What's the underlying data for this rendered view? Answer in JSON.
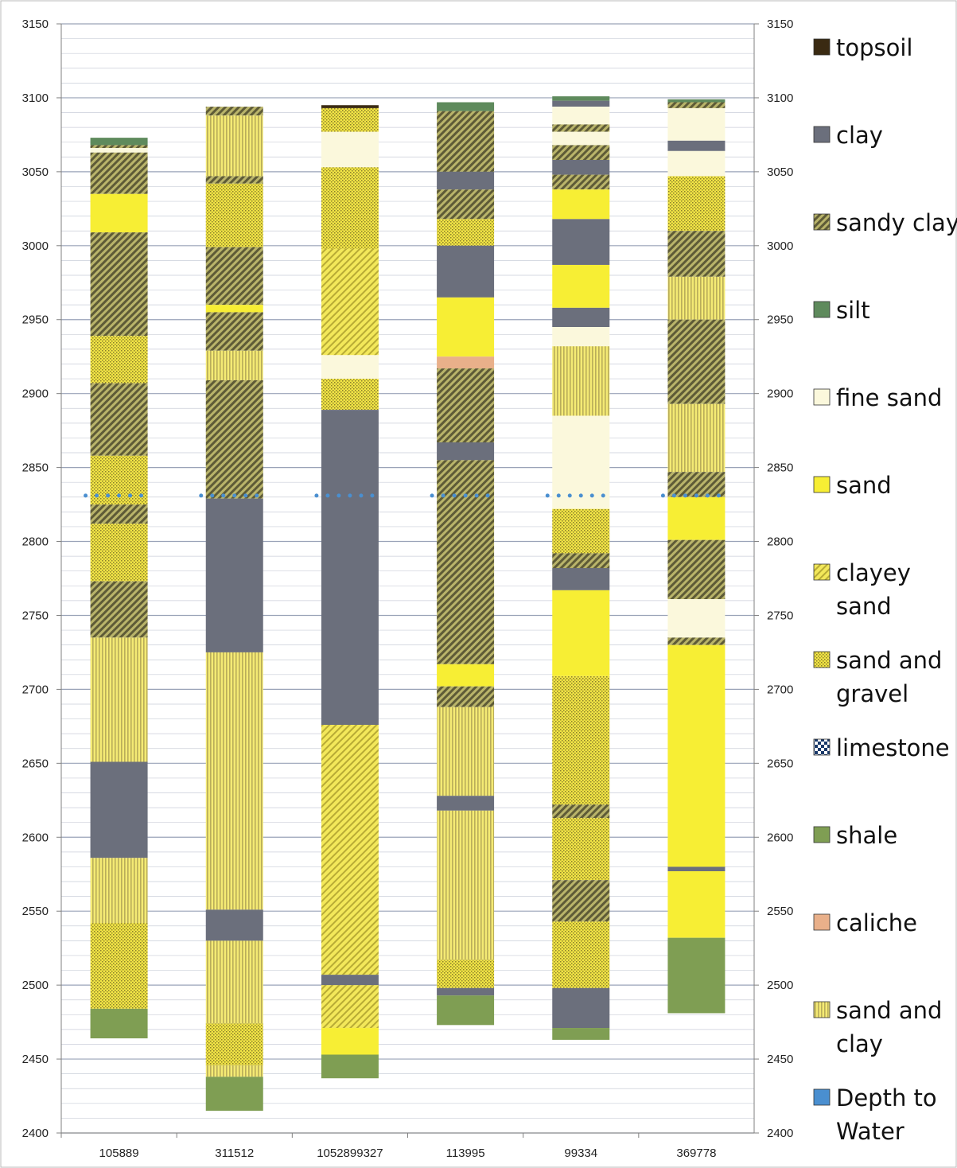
{
  "chart_data": {
    "type": "bar",
    "subtype": "stacked-column-lithology",
    "ylim": [
      2400,
      3150
    ],
    "yticks": [
      2400,
      2450,
      2500,
      2550,
      2600,
      2650,
      2700,
      2750,
      2800,
      2850,
      2900,
      2950,
      3000,
      3050,
      3100,
      3150
    ],
    "secondary_y_axis": true,
    "grid": "horizontal",
    "legend_position": "right",
    "categories": [
      "105889",
      "311512",
      "1052899327",
      "113995",
      "99334",
      "369778"
    ],
    "legend": [
      {
        "key": "topsoil",
        "lines": [
          "topsoil"
        ]
      },
      {
        "key": "clay",
        "lines": [
          "clay"
        ]
      },
      {
        "key": "sandy_clay",
        "lines": [
          "sandy clay"
        ]
      },
      {
        "key": "silt",
        "lines": [
          "silt"
        ]
      },
      {
        "key": "fine_sand",
        "lines": [
          "fine sand"
        ]
      },
      {
        "key": "sand",
        "lines": [
          "sand"
        ]
      },
      {
        "key": "clayey_sand",
        "lines": [
          "clayey",
          "sand"
        ]
      },
      {
        "key": "sand_gravel",
        "lines": [
          "sand and",
          "gravel"
        ]
      },
      {
        "key": "limestone",
        "lines": [
          "limestone"
        ]
      },
      {
        "key": "shale",
        "lines": [
          "shale"
        ]
      },
      {
        "key": "caliche",
        "lines": [
          "caliche"
        ]
      },
      {
        "key": "sand_clay",
        "lines": [
          "sand and",
          "clay"
        ]
      },
      {
        "key": "depth_to_water",
        "lines": [
          "Depth to",
          "Water"
        ]
      }
    ],
    "colors": {
      "topsoil": "#3a2a12",
      "clay": "#6b6f7c",
      "sandy_clay": "#8f8c52",
      "silt": "#5e8a5c",
      "fine_sand": "#fbf8dc",
      "sand": "#f7ee34",
      "clayey_sand": "#e2d44a",
      "sand_gravel": "#e8da45",
      "limestone": "#1a3a6a",
      "shale": "#7f9e53",
      "caliche": "#e9b08a",
      "sand_clay": "#ece275",
      "depth_to_water": "#4a8fd0"
    },
    "depth_to_water": [
      {
        "category": "105889",
        "elevation": 2831
      },
      {
        "category": "311512",
        "elevation": 2831
      },
      {
        "category": "1052899327",
        "elevation": 2831
      },
      {
        "category": "113995",
        "elevation": 2831
      },
      {
        "category": "99334",
        "elevation": 2831
      },
      {
        "category": "369778",
        "elevation": 2831
      }
    ],
    "wells": [
      {
        "name": "105889",
        "intervals": [
          {
            "lith": "silt",
            "top": 3073,
            "bottom": 3068
          },
          {
            "lith": "sandy_clay",
            "top": 3068,
            "bottom": 3066
          },
          {
            "lith": "fine_sand",
            "top": 3066,
            "bottom": 3063
          },
          {
            "lith": "sandy_clay",
            "top": 3063,
            "bottom": 3035
          },
          {
            "lith": "sand",
            "top": 3035,
            "bottom": 3009
          },
          {
            "lith": "sandy_clay",
            "top": 3009,
            "bottom": 2939
          },
          {
            "lith": "sand_gravel",
            "top": 2939,
            "bottom": 2907
          },
          {
            "lith": "sandy_clay",
            "top": 2907,
            "bottom": 2858
          },
          {
            "lith": "sand_gravel",
            "top": 2858,
            "bottom": 2825
          },
          {
            "lith": "sandy_clay",
            "top": 2825,
            "bottom": 2812
          },
          {
            "lith": "sand_gravel",
            "top": 2812,
            "bottom": 2773
          },
          {
            "lith": "sandy_clay",
            "top": 2773,
            "bottom": 2735
          },
          {
            "lith": "sand_clay",
            "top": 2735,
            "bottom": 2651
          },
          {
            "lith": "clay",
            "top": 2651,
            "bottom": 2586
          },
          {
            "lith": "sand_clay",
            "top": 2586,
            "bottom": 2542
          },
          {
            "lith": "sand_gravel",
            "top": 2542,
            "bottom": 2484
          },
          {
            "lith": "shale",
            "top": 2484,
            "bottom": 2464
          }
        ]
      },
      {
        "name": "311512",
        "intervals": [
          {
            "lith": "sandy_clay",
            "top": 3094,
            "bottom": 3088
          },
          {
            "lith": "sand_clay",
            "top": 3088,
            "bottom": 3047
          },
          {
            "lith": "sandy_clay",
            "top": 3047,
            "bottom": 3042
          },
          {
            "lith": "sand_gravel",
            "top": 3042,
            "bottom": 2999
          },
          {
            "lith": "sandy_clay",
            "top": 2999,
            "bottom": 2960
          },
          {
            "lith": "sand",
            "top": 2960,
            "bottom": 2955
          },
          {
            "lith": "sandy_clay",
            "top": 2955,
            "bottom": 2929
          },
          {
            "lith": "sand_clay",
            "top": 2929,
            "bottom": 2909
          },
          {
            "lith": "sandy_clay",
            "top": 2909,
            "bottom": 2829
          },
          {
            "lith": "clay",
            "top": 2829,
            "bottom": 2725
          },
          {
            "lith": "sand_clay",
            "top": 2725,
            "bottom": 2551
          },
          {
            "lith": "clay",
            "top": 2551,
            "bottom": 2530
          },
          {
            "lith": "sand_clay",
            "top": 2530,
            "bottom": 2474
          },
          {
            "lith": "sand_gravel",
            "top": 2474,
            "bottom": 2446
          },
          {
            "lith": "sand_clay",
            "top": 2446,
            "bottom": 2438
          },
          {
            "lith": "shale",
            "top": 2438,
            "bottom": 2415
          }
        ]
      },
      {
        "name": "1052899327",
        "intervals": [
          {
            "lith": "topsoil",
            "top": 3095,
            "bottom": 3093
          },
          {
            "lith": "sand_gravel",
            "top": 3093,
            "bottom": 3077
          },
          {
            "lith": "fine_sand",
            "top": 3077,
            "bottom": 3053
          },
          {
            "lith": "sand_gravel",
            "top": 3053,
            "bottom": 2998
          },
          {
            "lith": "clayey_sand",
            "top": 2998,
            "bottom": 2926
          },
          {
            "lith": "fine_sand",
            "top": 2926,
            "bottom": 2910
          },
          {
            "lith": "sand_gravel",
            "top": 2910,
            "bottom": 2889
          },
          {
            "lith": "clay",
            "top": 2889,
            "bottom": 2676
          },
          {
            "lith": "clayey_sand",
            "top": 2676,
            "bottom": 2507
          },
          {
            "lith": "clay",
            "top": 2507,
            "bottom": 2500
          },
          {
            "lith": "clayey_sand",
            "top": 2500,
            "bottom": 2471
          },
          {
            "lith": "sand",
            "top": 2471,
            "bottom": 2453
          },
          {
            "lith": "shale",
            "top": 2453,
            "bottom": 2437
          }
        ]
      },
      {
        "name": "113995",
        "intervals": [
          {
            "lith": "silt",
            "top": 3097,
            "bottom": 3091
          },
          {
            "lith": "sandy_clay",
            "top": 3091,
            "bottom": 3050
          },
          {
            "lith": "clay",
            "top": 3050,
            "bottom": 3038
          },
          {
            "lith": "sandy_clay",
            "top": 3038,
            "bottom": 3018
          },
          {
            "lith": "sand_gravel",
            "top": 3018,
            "bottom": 3000
          },
          {
            "lith": "clay",
            "top": 3000,
            "bottom": 2965
          },
          {
            "lith": "sand",
            "top": 2965,
            "bottom": 2925
          },
          {
            "lith": "caliche",
            "top": 2925,
            "bottom": 2917
          },
          {
            "lith": "sandy_clay",
            "top": 2917,
            "bottom": 2867
          },
          {
            "lith": "clay",
            "top": 2867,
            "bottom": 2855
          },
          {
            "lith": "sandy_clay",
            "top": 2855,
            "bottom": 2717
          },
          {
            "lith": "sand",
            "top": 2717,
            "bottom": 2702
          },
          {
            "lith": "sandy_clay",
            "top": 2702,
            "bottom": 2688
          },
          {
            "lith": "sand_clay",
            "top": 2688,
            "bottom": 2628
          },
          {
            "lith": "clay",
            "top": 2628,
            "bottom": 2618
          },
          {
            "lith": "sand_clay",
            "top": 2618,
            "bottom": 2517
          },
          {
            "lith": "sand_gravel",
            "top": 2517,
            "bottom": 2498
          },
          {
            "lith": "clay",
            "top": 2498,
            "bottom": 2493
          },
          {
            "lith": "shale",
            "top": 2493,
            "bottom": 2473
          }
        ]
      },
      {
        "name": "99334",
        "intervals": [
          {
            "lith": "silt",
            "top": 3101,
            "bottom": 3098
          },
          {
            "lith": "clay",
            "top": 3098,
            "bottom": 3094
          },
          {
            "lith": "fine_sand",
            "top": 3094,
            "bottom": 3082
          },
          {
            "lith": "sandy_clay",
            "top": 3082,
            "bottom": 3077
          },
          {
            "lith": "fine_sand",
            "top": 3077,
            "bottom": 3068
          },
          {
            "lith": "sandy_clay",
            "top": 3068,
            "bottom": 3058
          },
          {
            "lith": "clay",
            "top": 3058,
            "bottom": 3048
          },
          {
            "lith": "sandy_clay",
            "top": 3048,
            "bottom": 3038
          },
          {
            "lith": "sand",
            "top": 3038,
            "bottom": 3018
          },
          {
            "lith": "clay",
            "top": 3018,
            "bottom": 2987
          },
          {
            "lith": "sand",
            "top": 2987,
            "bottom": 2958
          },
          {
            "lith": "clay",
            "top": 2958,
            "bottom": 2945
          },
          {
            "lith": "fine_sand",
            "top": 2945,
            "bottom": 2932
          },
          {
            "lith": "sand_clay",
            "top": 2932,
            "bottom": 2885
          },
          {
            "lith": "fine_sand",
            "top": 2885,
            "bottom": 2822
          },
          {
            "lith": "sand_gravel",
            "top": 2822,
            "bottom": 2792
          },
          {
            "lith": "sandy_clay",
            "top": 2792,
            "bottom": 2782
          },
          {
            "lith": "clay",
            "top": 2782,
            "bottom": 2767
          },
          {
            "lith": "sand",
            "top": 2767,
            "bottom": 2709
          },
          {
            "lith": "sand_gravel",
            "top": 2709,
            "bottom": 2622
          },
          {
            "lith": "sandy_clay",
            "top": 2622,
            "bottom": 2613
          },
          {
            "lith": "sand_gravel",
            "top": 2613,
            "bottom": 2571
          },
          {
            "lith": "sandy_clay",
            "top": 2571,
            "bottom": 2543
          },
          {
            "lith": "sand_gravel",
            "top": 2543,
            "bottom": 2498
          },
          {
            "lith": "clay",
            "top": 2498,
            "bottom": 2471
          },
          {
            "lith": "shale",
            "top": 2471,
            "bottom": 2463
          }
        ]
      },
      {
        "name": "369778",
        "intervals": [
          {
            "lith": "silt",
            "top": 3099,
            "bottom": 3097
          },
          {
            "lith": "sandy_clay",
            "top": 3097,
            "bottom": 3093
          },
          {
            "lith": "fine_sand",
            "top": 3093,
            "bottom": 3071
          },
          {
            "lith": "clay",
            "top": 3071,
            "bottom": 3064
          },
          {
            "lith": "fine_sand",
            "top": 3064,
            "bottom": 3047
          },
          {
            "lith": "sand_gravel",
            "top": 3047,
            "bottom": 3010
          },
          {
            "lith": "sandy_clay",
            "top": 3010,
            "bottom": 2979
          },
          {
            "lith": "sand_clay",
            "top": 2979,
            "bottom": 2950
          },
          {
            "lith": "sandy_clay",
            "top": 2950,
            "bottom": 2893
          },
          {
            "lith": "sand_clay",
            "top": 2893,
            "bottom": 2847
          },
          {
            "lith": "sandy_clay",
            "top": 2847,
            "bottom": 2830
          },
          {
            "lith": "sand",
            "top": 2830,
            "bottom": 2801
          },
          {
            "lith": "sandy_clay",
            "top": 2801,
            "bottom": 2761
          },
          {
            "lith": "fine_sand",
            "top": 2761,
            "bottom": 2735
          },
          {
            "lith": "sandy_clay",
            "top": 2735,
            "bottom": 2730
          },
          {
            "lith": "sand",
            "top": 2730,
            "bottom": 2580
          },
          {
            "lith": "clay",
            "top": 2580,
            "bottom": 2577
          },
          {
            "lith": "sand",
            "top": 2577,
            "bottom": 2532
          },
          {
            "lith": "shale",
            "top": 2532,
            "bottom": 2481
          }
        ]
      }
    ]
  }
}
